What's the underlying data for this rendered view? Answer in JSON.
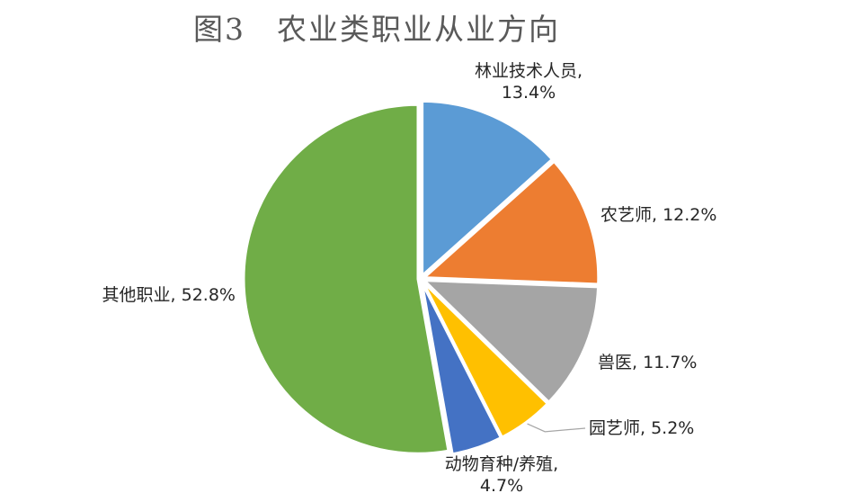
{
  "chart_data": {
    "type": "pie",
    "title": "图3　农业类职业从业方向",
    "series": [
      {
        "values": [
          {
            "category": "林业技术人员",
            "value": 13.4,
            "label_lines": [
              "林业技术人员,",
              "13.4%"
            ],
            "color": "#5b9bd5"
          },
          {
            "category": "农艺师",
            "value": 12.2,
            "label_lines": [
              "农艺师, 12.2%"
            ],
            "color": "#ed7d31"
          },
          {
            "category": "兽医",
            "value": 11.7,
            "label_lines": [
              "兽医, 11.7%"
            ],
            "color": "#a5a5a5"
          },
          {
            "category": "园艺师",
            "value": 5.2,
            "label_lines": [
              "园艺师, 5.2%"
            ],
            "color": "#ffc000"
          },
          {
            "category": "动物育种/养殖",
            "value": 4.7,
            "label_lines": [
              "动物育种/养殖,",
              "4.7%"
            ],
            "color": "#4472c4"
          },
          {
            "category": "其他职业",
            "value": 52.8,
            "label_lines": [
              "其他职业, 52.8%"
            ],
            "color": "#70ad47"
          }
        ]
      }
    ],
    "start_angle": "12 o'clock",
    "direction": "clockwise",
    "legend": "none",
    "data_labels": "outside"
  }
}
